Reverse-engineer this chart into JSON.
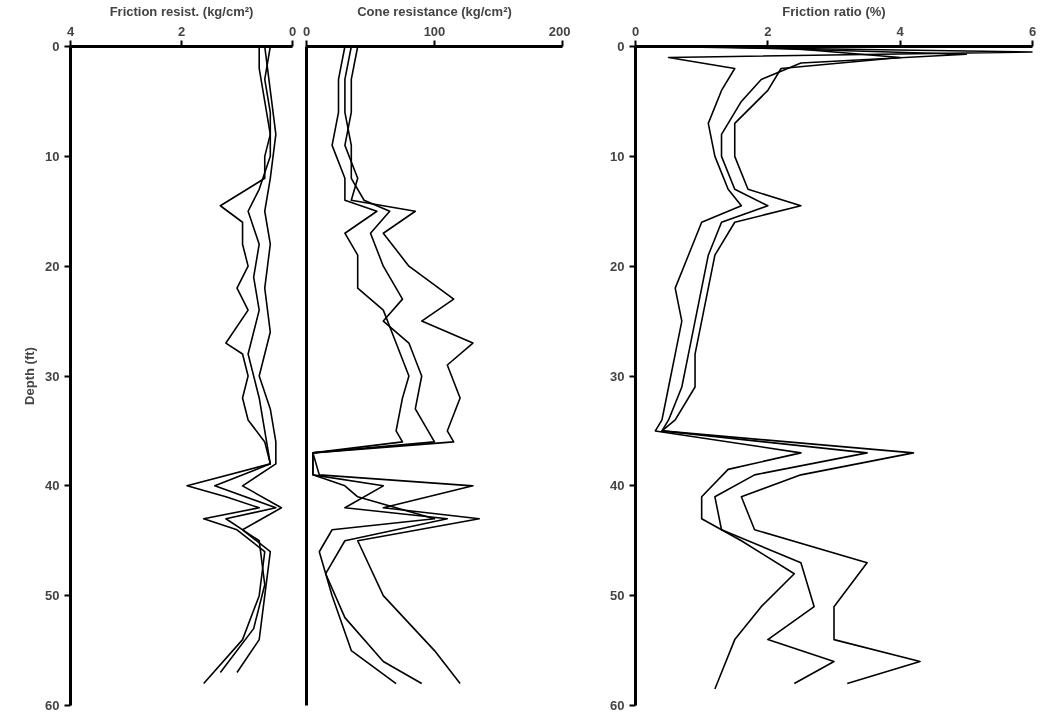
{
  "chart_data": [
    {
      "type": "line",
      "xlabel": "Friction resist. (kg/cm²)",
      "ylabel": "Depth (ft)",
      "xlim": [
        4,
        0
      ],
      "xticks": [
        4,
        2,
        0
      ],
      "ylim": [
        60,
        0
      ],
      "yticks": [
        0,
        10,
        20,
        30,
        40,
        50,
        60
      ],
      "grid": false,
      "series": [
        {
          "color": "#000000",
          "x": [
            0.6,
            0.6,
            0.5,
            0.4,
            0.5,
            0.5,
            1.3,
            0.9,
            0.9,
            0.8,
            1.0,
            0.8,
            1.2,
            0.9,
            0.8,
            0.9,
            0.8,
            0.5,
            0.4,
            1.9,
            1.2,
            0.6,
            1.6,
            1.0,
            0.5,
            0.6,
            0.9,
            1.6
          ],
          "values": [
            0,
            2,
            5,
            8,
            10,
            12,
            14.5,
            16,
            18,
            20,
            22,
            24,
            27,
            28,
            30,
            32,
            34,
            36,
            38,
            40,
            41,
            42,
            43,
            44,
            46,
            50,
            54,
            58
          ]
        },
        {
          "color": "#000000",
          "x": [
            0.4,
            0.5,
            0.4,
            0.4,
            0.6,
            0.8,
            0.6,
            0.7,
            0.6,
            0.8,
            0.6,
            0.5,
            0.4,
            1.4,
            0.3,
            1.2,
            0.6,
            0.5,
            0.7,
            1.3
          ],
          "values": [
            0,
            3,
            6,
            10,
            13,
            15,
            18,
            21,
            24,
            28,
            32,
            35,
            38,
            40,
            42,
            43,
            45,
            49,
            53,
            57
          ]
        },
        {
          "color": "#000000",
          "x": [
            0.5,
            0.4,
            0.3,
            0.4,
            0.5,
            0.4,
            0.5,
            0.4,
            0.6,
            0.4,
            0.3,
            0.3,
            0.9,
            0.2,
            0.9,
            0.4,
            0.5,
            0.6,
            1.0
          ],
          "values": [
            0,
            4,
            8,
            12,
            15,
            18,
            22,
            26,
            30,
            33,
            36,
            38,
            40,
            42,
            44,
            46,
            50,
            54,
            57
          ]
        }
      ]
    },
    {
      "type": "line",
      "xlabel": "Cone resistance (kg/cm²)",
      "xlim": [
        0,
        200
      ],
      "xticks": [
        0,
        100,
        200
      ],
      "ylim": [
        60,
        0
      ],
      "yticks": [
        0,
        10,
        20,
        30,
        40,
        50,
        60
      ],
      "tick_labels": "x",
      "grid": false,
      "series": [
        {
          "color": "#000000",
          "x": [
            30,
            25,
            25,
            20,
            30,
            30,
            55,
            30,
            40,
            40,
            60,
            70,
            80,
            75,
            70,
            75,
            5,
            5,
            30,
            40,
            100,
            20,
            10,
            20,
            35,
            70
          ],
          "values": [
            0,
            3,
            6,
            9,
            12,
            14,
            15,
            17,
            19,
            22,
            24,
            27,
            30,
            32,
            35,
            36,
            37,
            39,
            40,
            41,
            43,
            44,
            46,
            50,
            55,
            58
          ]
        },
        {
          "color": "#000000",
          "x": [
            35,
            30,
            30,
            35,
            35,
            45,
            65,
            50,
            60,
            75,
            60,
            80,
            90,
            85,
            95,
            100,
            5,
            5,
            60,
            30,
            110,
            30,
            15,
            30,
            60,
            90
          ],
          "values": [
            0,
            3,
            6,
            9,
            12,
            14,
            15,
            17,
            20,
            23,
            25,
            27,
            30,
            33,
            35,
            36,
            37,
            39,
            40,
            42,
            43,
            45,
            48,
            52,
            56,
            58
          ]
        },
        {
          "color": "#000000",
          "x": [
            40,
            35,
            35,
            30,
            40,
            35,
            85,
            60,
            80,
            115,
            90,
            130,
            110,
            120,
            110,
            115,
            5,
            10,
            130,
            60,
            135,
            40,
            60,
            100,
            120
          ],
          "values": [
            0,
            3,
            6,
            9,
            12,
            14,
            15,
            17,
            20,
            23,
            25,
            27,
            29,
            32,
            35,
            36,
            37,
            39,
            40,
            42,
            43,
            45,
            50,
            55,
            58
          ]
        }
      ]
    },
    {
      "type": "line",
      "xlabel": "Friction ratio (%)",
      "xlim": [
        0,
        6
      ],
      "xticks": [
        0,
        2,
        4,
        6
      ],
      "ylim": [
        60,
        0
      ],
      "yticks": [
        0,
        10,
        20,
        30,
        40,
        50,
        60
      ],
      "grid": false,
      "series": [
        {
          "color": "#000000",
          "x": [
            0.3,
            6,
            0.5,
            1.5,
            1.3,
            1.1,
            1.2,
            1.4,
            1.6,
            1.0,
            0.8,
            0.6,
            0.7,
            0.6,
            0.5,
            0.4,
            0.3,
            2.5,
            1.4,
            1.0,
            1.0,
            1.6,
            2.4,
            1.9,
            1.5,
            1.3,
            1.2
          ],
          "values": [
            0,
            0.5,
            1,
            2,
            4,
            7,
            10,
            13,
            14.5,
            16,
            19,
            22,
            25,
            28,
            31,
            34,
            35,
            37,
            38.5,
            41,
            43,
            45,
            48,
            51,
            54,
            57,
            58.5
          ]
        },
        {
          "color": "#000000",
          "x": [
            1,
            5,
            2.5,
            1.9,
            1.6,
            1.3,
            1.3,
            1.5,
            2.0,
            1.3,
            1.1,
            1.0,
            0.9,
            0.8,
            0.7,
            0.5,
            0.4,
            3.5,
            1.8,
            1.2,
            1.3,
            2.5,
            2.7,
            2.0,
            3.0,
            2.4
          ],
          "values": [
            0,
            0.7,
            1.5,
            3,
            5,
            8,
            10,
            13,
            14.5,
            16,
            19,
            22,
            25,
            28,
            31,
            34,
            35,
            37,
            39,
            41,
            44,
            47,
            51,
            54,
            56,
            58
          ]
        },
        {
          "color": "#000000",
          "x": [
            2,
            4,
            2.2,
            2.0,
            1.5,
            1.5,
            1.7,
            2.5,
            1.5,
            1.2,
            1.1,
            1.0,
            0.9,
            0.9,
            0.6,
            0.4,
            4.2,
            2.5,
            1.6,
            1.8,
            3.5,
            3.0,
            3.0,
            4.3,
            3.2
          ],
          "values": [
            0,
            1,
            2,
            4,
            7,
            10,
            13,
            14.5,
            16,
            19,
            22,
            25,
            28,
            31,
            34,
            35,
            37,
            39,
            41,
            44,
            47,
            51,
            54,
            56,
            58
          ]
        }
      ]
    }
  ]
}
